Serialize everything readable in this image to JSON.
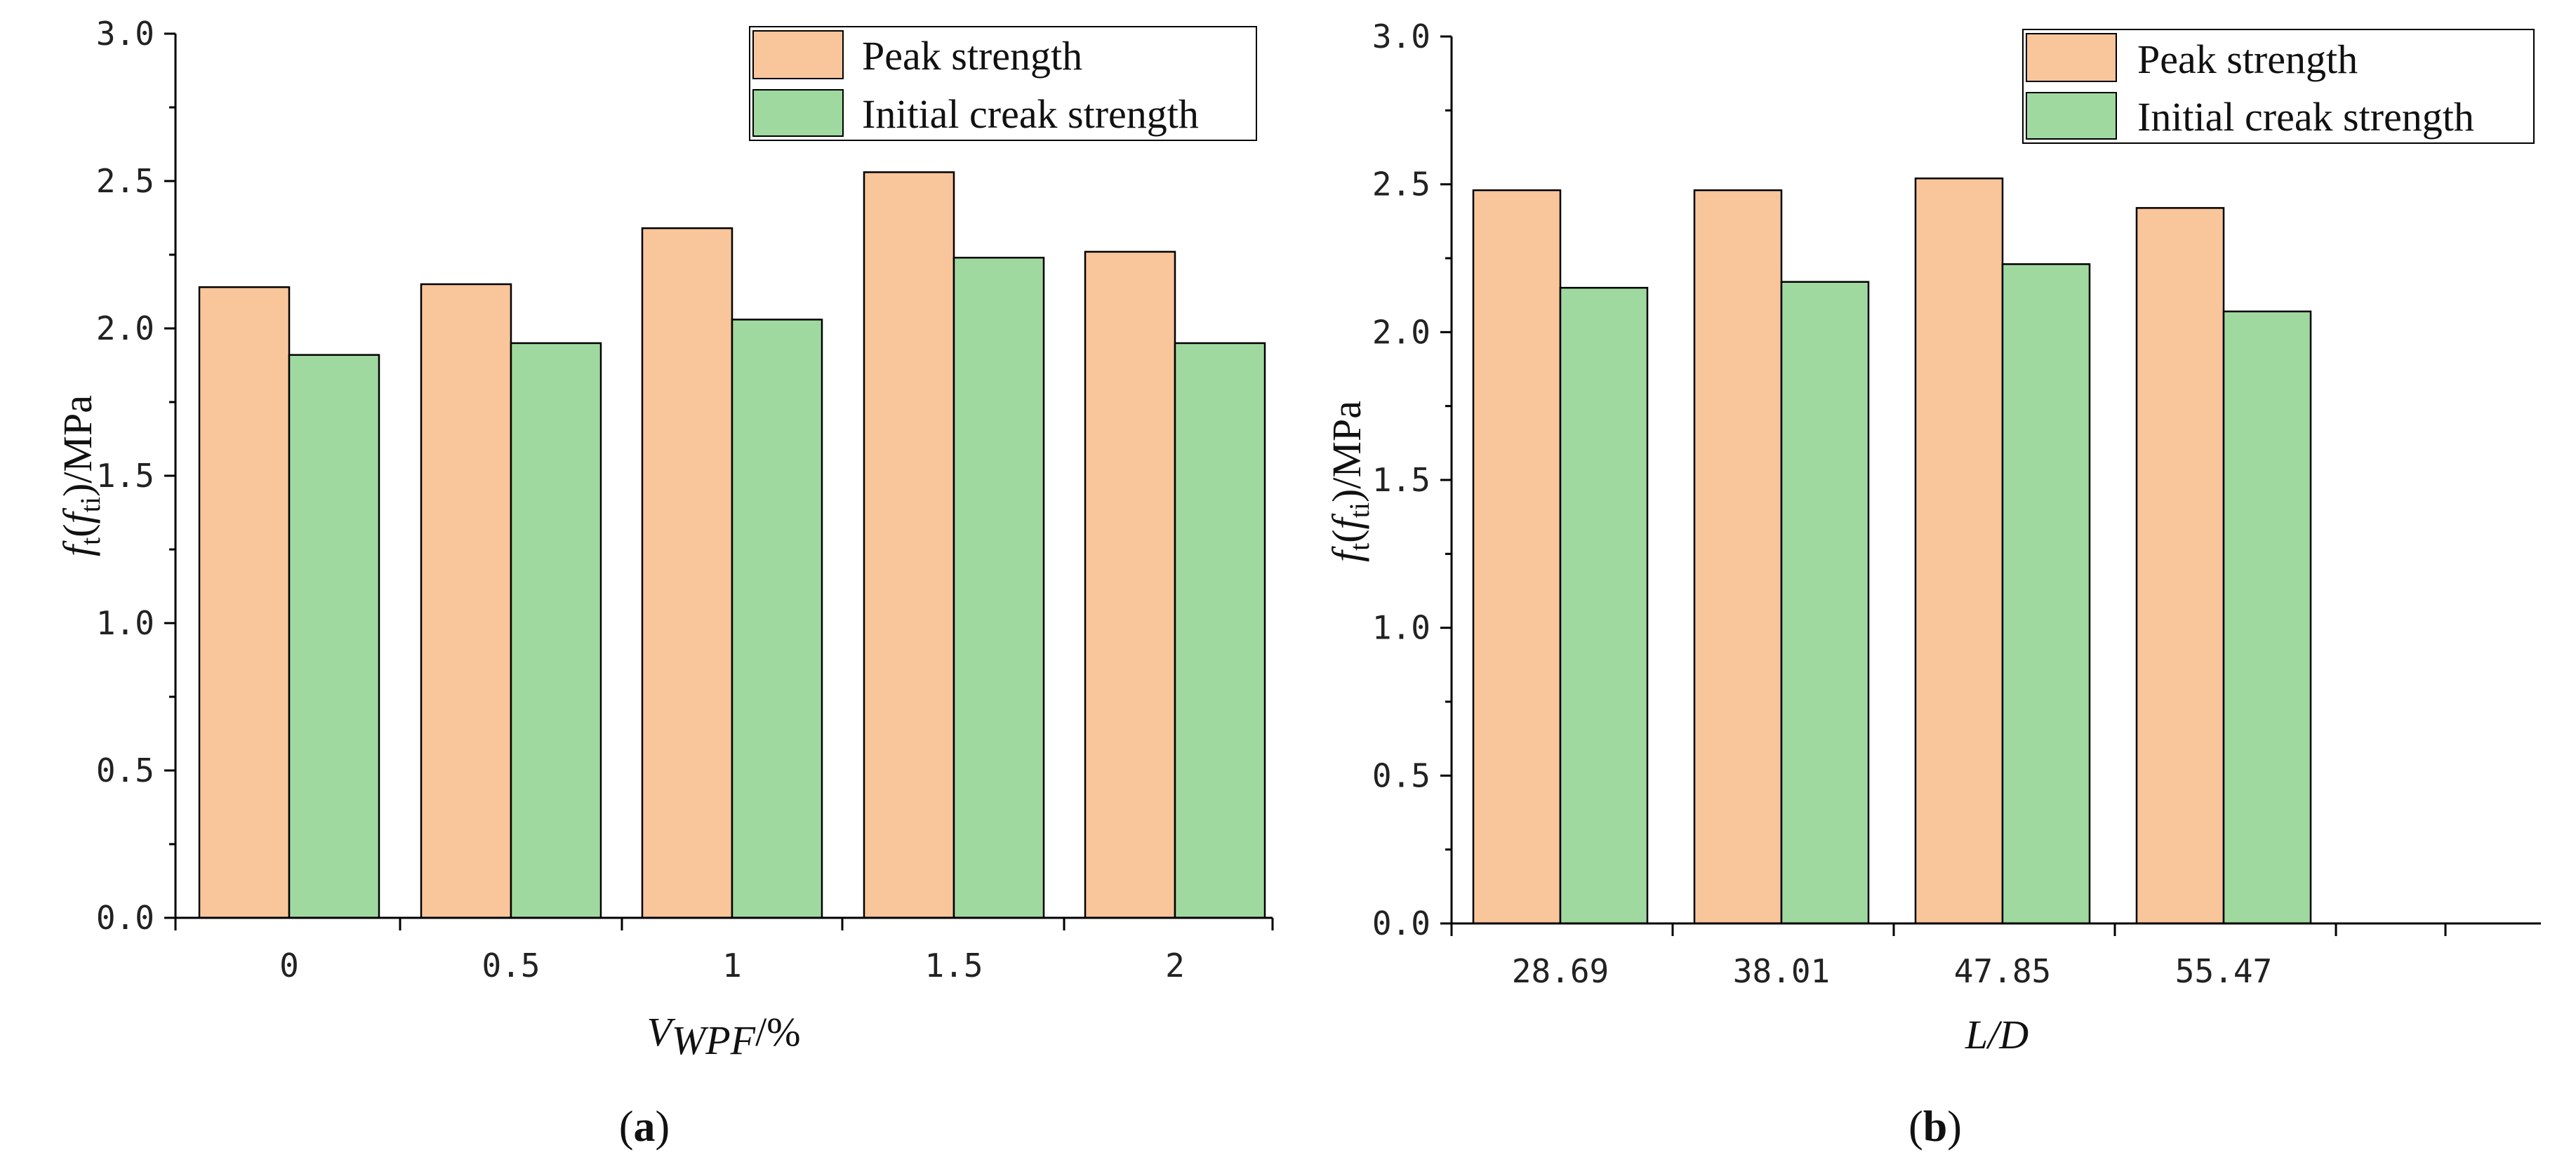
{
  "colors": {
    "peak": "#F9C59A",
    "initial": "#A0D9A0",
    "axis": "#000000"
  },
  "chart_data": [
    {
      "type": "bar",
      "panel_label": "a",
      "categories": [
        "0",
        "0.5",
        "1",
        "1.5",
        "2"
      ],
      "series": [
        {
          "name": "Peak strength",
          "values": [
            2.14,
            2.15,
            2.34,
            2.53,
            2.26
          ]
        },
        {
          "name": "Initial creak strength",
          "values": [
            1.91,
            1.95,
            2.03,
            2.24,
            1.95
          ]
        }
      ],
      "ylim": [
        0,
        3.0
      ],
      "yticks": [
        "0.0",
        "0.5",
        "1.0",
        "1.5",
        "2.0",
        "2.5",
        "3.0"
      ],
      "ylabel": {
        "f1": "f",
        "s1": "t",
        "f2": "f",
        "s2": "ti",
        "unit": "/MPa"
      },
      "xlabel": {
        "main": "V",
        "sub": "WPF",
        "unit": "/%"
      },
      "legend_position": "top-right"
    },
    {
      "type": "bar",
      "panel_label": "b",
      "categories": [
        "28.69",
        "38.01",
        "47.85",
        "55.47"
      ],
      "series": [
        {
          "name": "Peak strength",
          "values": [
            2.48,
            2.48,
            2.52,
            2.42
          ]
        },
        {
          "name": "Initial creak strength",
          "values": [
            2.15,
            2.17,
            2.23,
            2.07
          ]
        }
      ],
      "ylim": [
        0,
        3.0
      ],
      "yticks": [
        "0.0",
        "0.5",
        "1.0",
        "1.5",
        "2.0",
        "2.5",
        "3.0"
      ],
      "ylabel": {
        "f1": "f",
        "s1": "t",
        "f2": "f",
        "s2": "ti",
        "unit": "/MPa"
      },
      "xlabel": {
        "main": "L/D"
      },
      "legend_position": "top-right"
    }
  ]
}
